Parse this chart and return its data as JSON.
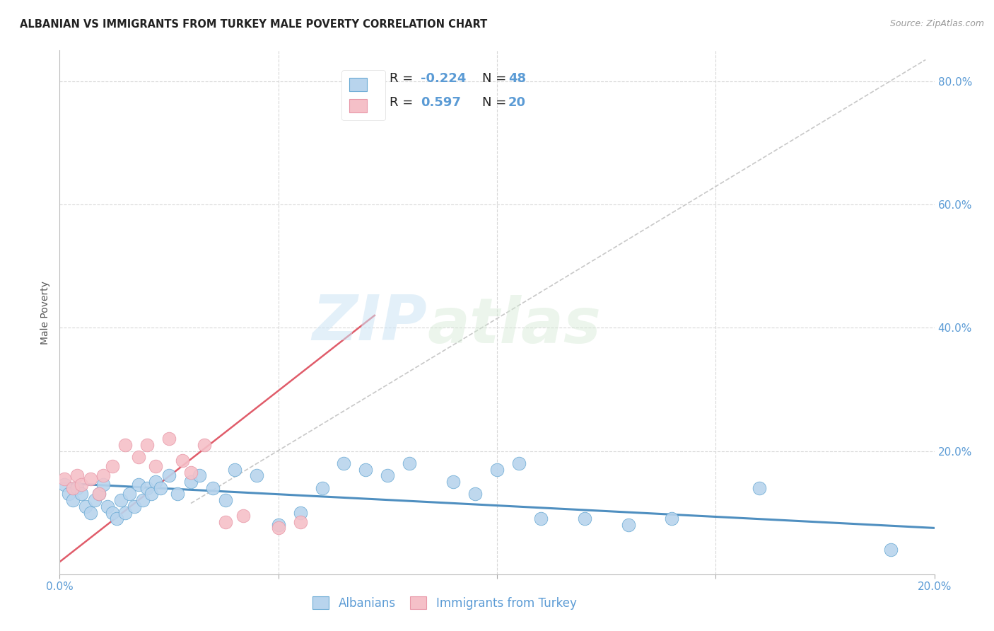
{
  "title": "ALBANIAN VS IMMIGRANTS FROM TURKEY MALE POVERTY CORRELATION CHART",
  "source": "Source: ZipAtlas.com",
  "ylabel": "Male Poverty",
  "xlim": [
    0.0,
    0.2
  ],
  "ylim": [
    0.0,
    0.85
  ],
  "xticks": [
    0.0,
    0.05,
    0.1,
    0.15,
    0.2
  ],
  "yticks": [
    0.0,
    0.2,
    0.4,
    0.6,
    0.8
  ],
  "xtick_labels": [
    "0.0%",
    "",
    "",
    "",
    "20.0%"
  ],
  "ytick_right_labels": [
    "",
    "20.0%",
    "40.0%",
    "60.0%",
    "80.0%"
  ],
  "watermark_zip": "ZIP",
  "watermark_atlas": "atlas",
  "blue_scatter_x": [
    0.001,
    0.002,
    0.003,
    0.004,
    0.005,
    0.006,
    0.007,
    0.008,
    0.009,
    0.01,
    0.011,
    0.012,
    0.013,
    0.014,
    0.015,
    0.016,
    0.017,
    0.018,
    0.019,
    0.02,
    0.021,
    0.022,
    0.023,
    0.025,
    0.027,
    0.03,
    0.032,
    0.035,
    0.038,
    0.04,
    0.045,
    0.05,
    0.055,
    0.06,
    0.065,
    0.07,
    0.075,
    0.08,
    0.09,
    0.095,
    0.1,
    0.105,
    0.11,
    0.12,
    0.13,
    0.14,
    0.16,
    0.19
  ],
  "blue_scatter_y": [
    0.145,
    0.13,
    0.12,
    0.14,
    0.13,
    0.11,
    0.1,
    0.12,
    0.13,
    0.145,
    0.11,
    0.1,
    0.09,
    0.12,
    0.1,
    0.13,
    0.11,
    0.145,
    0.12,
    0.14,
    0.13,
    0.15,
    0.14,
    0.16,
    0.13,
    0.15,
    0.16,
    0.14,
    0.12,
    0.17,
    0.16,
    0.08,
    0.1,
    0.14,
    0.18,
    0.17,
    0.16,
    0.18,
    0.15,
    0.13,
    0.17,
    0.18,
    0.09,
    0.09,
    0.08,
    0.09,
    0.14,
    0.04
  ],
  "pink_scatter_x": [
    0.001,
    0.003,
    0.004,
    0.005,
    0.007,
    0.009,
    0.01,
    0.012,
    0.015,
    0.018,
    0.02,
    0.022,
    0.025,
    0.028,
    0.03,
    0.033,
    0.038,
    0.042,
    0.05,
    0.055
  ],
  "pink_scatter_y": [
    0.155,
    0.14,
    0.16,
    0.145,
    0.155,
    0.13,
    0.16,
    0.175,
    0.21,
    0.19,
    0.21,
    0.175,
    0.22,
    0.185,
    0.165,
    0.21,
    0.085,
    0.095,
    0.075,
    0.085
  ],
  "blue_line_x": [
    0.0,
    0.2
  ],
  "blue_line_y": [
    0.148,
    0.075
  ],
  "pink_line_x": [
    0.0,
    0.072
  ],
  "pink_line_y": [
    0.02,
    0.42
  ],
  "gray_dashed_line_x": [
    0.03,
    0.198
  ],
  "gray_dashed_line_y": [
    0.115,
    0.835
  ],
  "blue_color": "#4f8fc0",
  "pink_color": "#e05c6a",
  "gray_dashed_color": "#c8c8c8",
  "scatter_blue_facecolor": "#b8d4ed",
  "scatter_blue_edgecolor": "#6aaad4",
  "scatter_pink_facecolor": "#f5c0c8",
  "scatter_pink_edgecolor": "#e898a8",
  "grid_color": "#d8d8d8",
  "background_color": "#ffffff",
  "title_fontsize": 10.5,
  "axis_label_fontsize": 10,
  "tick_fontsize": 11,
  "source_fontsize": 9,
  "right_ytick_color": "#5b9bd5",
  "xtick_color": "#5b9bd5",
  "legend_R_color": "#222222",
  "legend_N_color": "#5b9bd5"
}
